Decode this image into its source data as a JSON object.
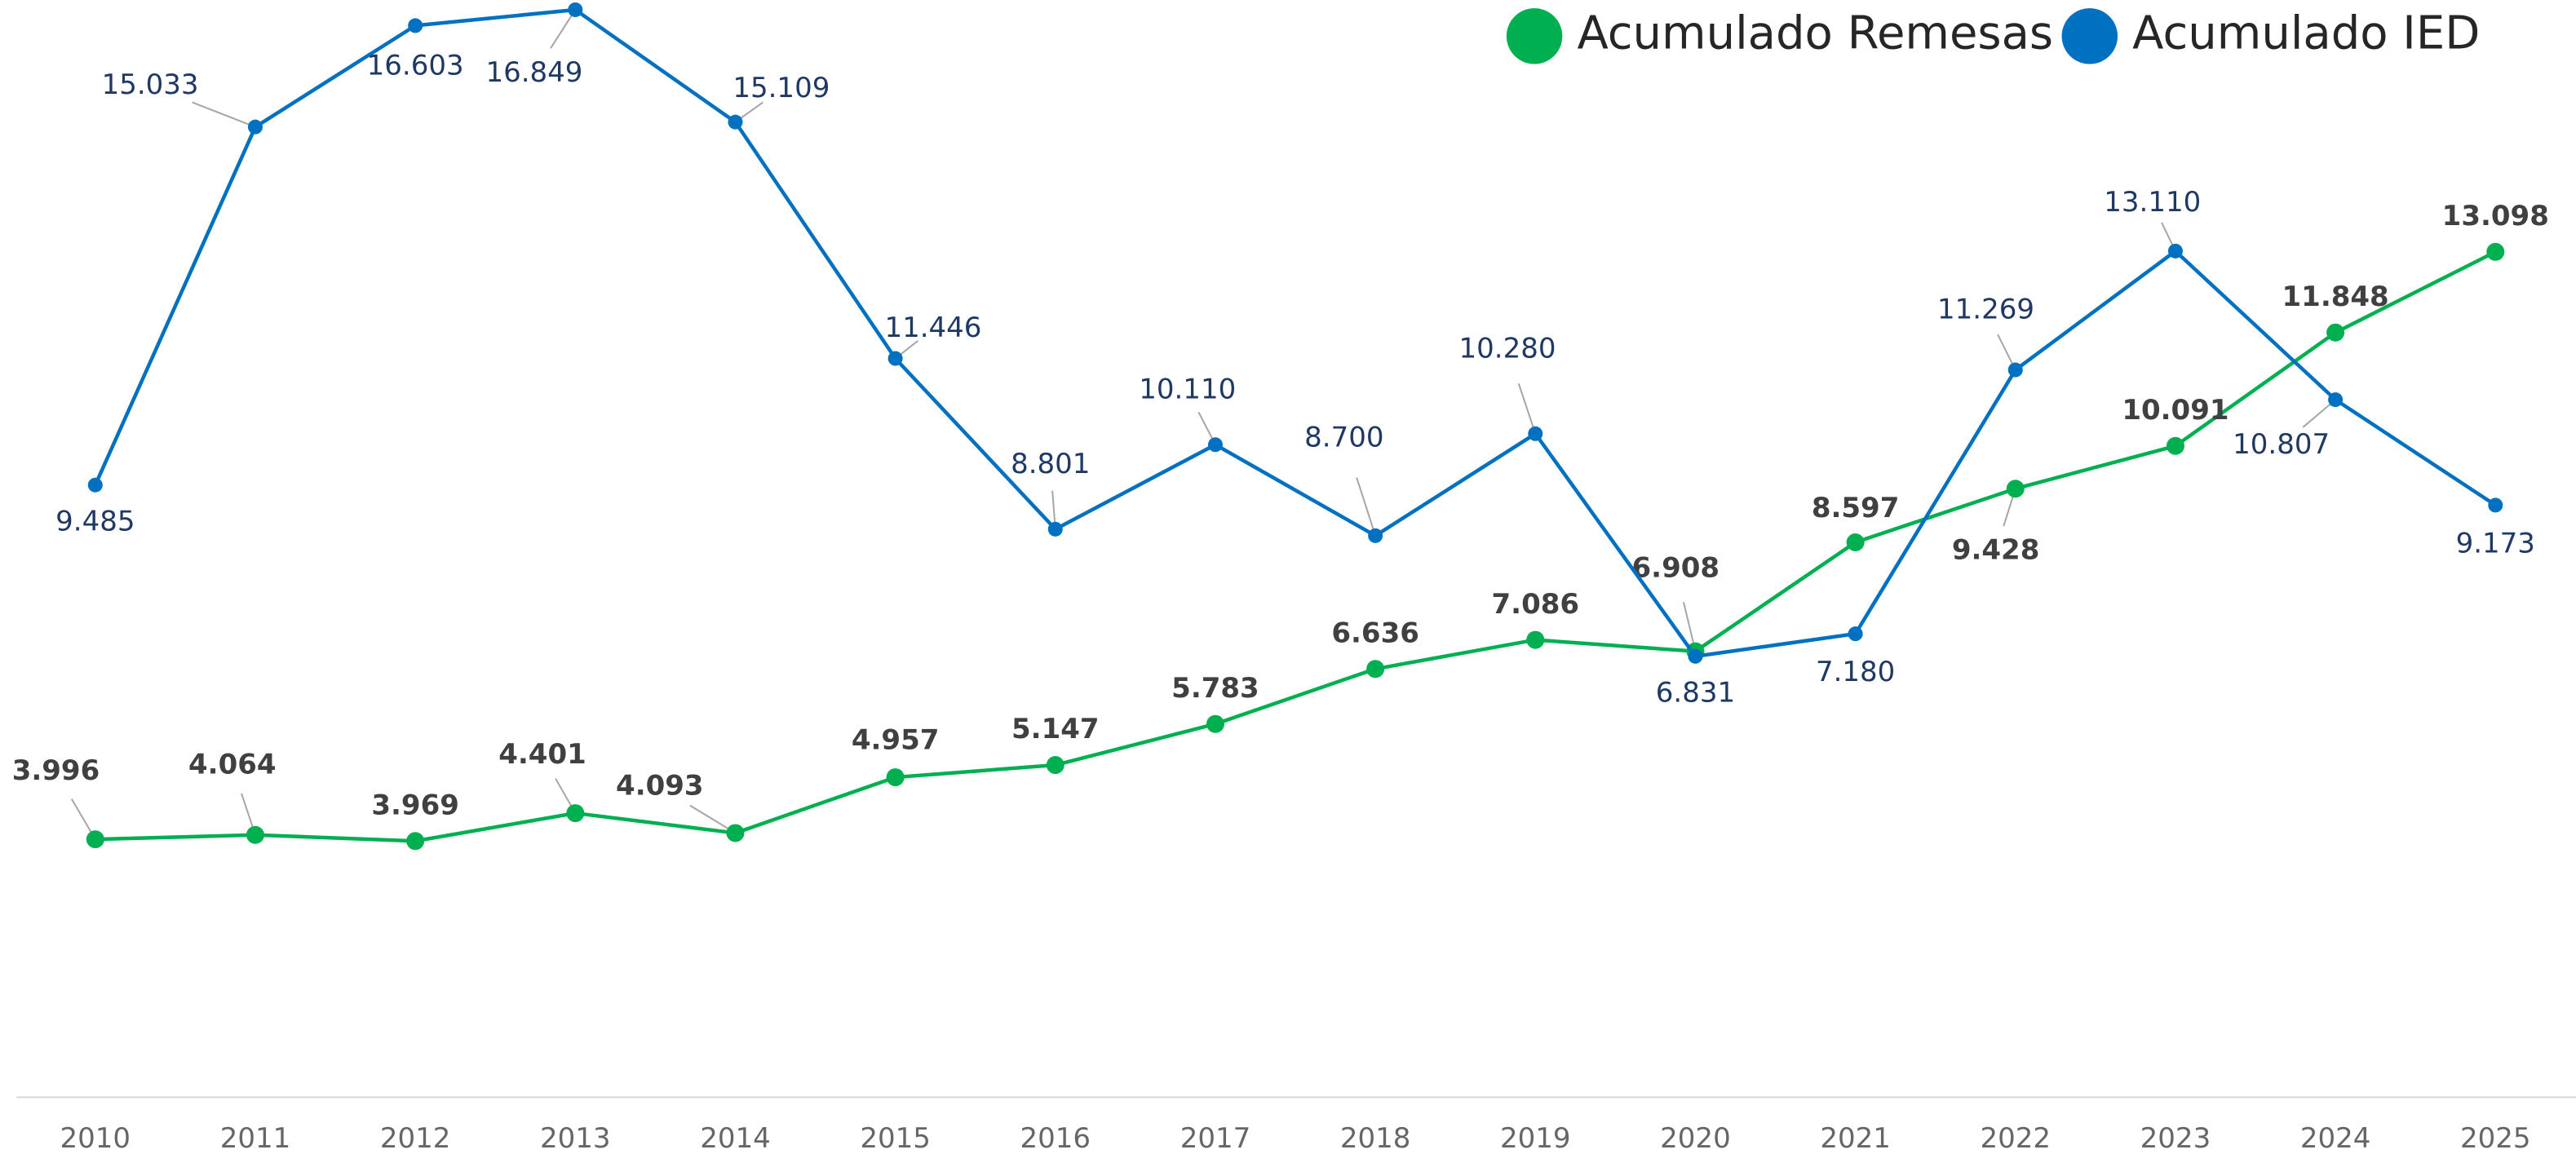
{
  "chart_data": {
    "type": "line",
    "categories": [
      "2010",
      "2011",
      "2012",
      "2013",
      "2014",
      "2015",
      "2016",
      "2017",
      "2018",
      "2019",
      "2020",
      "2021",
      "2022",
      "2023",
      "2024",
      "2025"
    ],
    "series": [
      {
        "name": "Acumulado Remesas",
        "color": "#00b050",
        "values": [
          3996,
          4064,
          3969,
          4401,
          4093,
          4957,
          5147,
          5783,
          6636,
          7086,
          6908,
          8597,
          9428,
          10091,
          11848,
          13098
        ],
        "value_labels": [
          "3.996",
          "4.064",
          "3.969",
          "4.401",
          "4.093",
          "4.957",
          "5.147",
          "5.783",
          "6.636",
          "7.086",
          "6.908",
          "8.597",
          "9.428",
          "10.091",
          "11.848",
          "13.098"
        ]
      },
      {
        "name": "Acumulado IED",
        "color": "#0070c0",
        "values": [
          9485,
          15033,
          16603,
          16849,
          15109,
          11446,
          8801,
          10110,
          8700,
          10280,
          6831,
          7180,
          11269,
          13110,
          10807,
          9173
        ],
        "value_labels": [
          "9.485",
          "15.033",
          "16.603",
          "16.849",
          "15.109",
          "11.446",
          "8.801",
          "10.110",
          "8.700",
          "10.280",
          "6.831",
          "7.180",
          "11.269",
          "13.110",
          "10.807",
          "9.173"
        ]
      }
    ],
    "ylim": [
      0,
      17000
    ],
    "legend": "top-right"
  }
}
